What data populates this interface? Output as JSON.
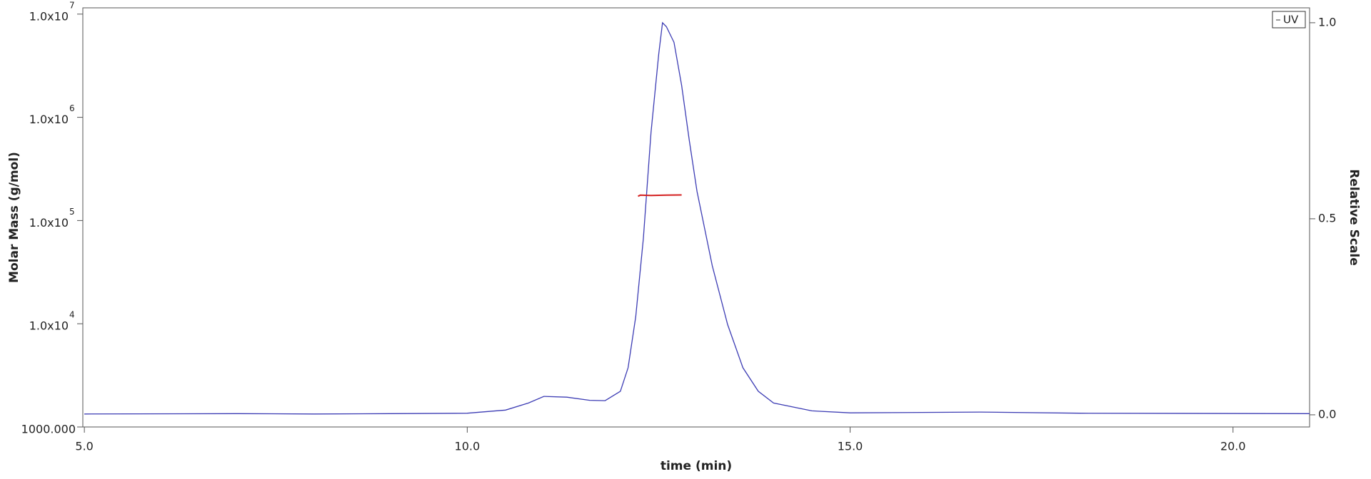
{
  "chart_data": {
    "type": "line",
    "xlabel": "time (min)",
    "ylabel": "Molar Mass (g/mol)",
    "y2label": "Relative Scale",
    "xlim": [
      4.98,
      21.0
    ],
    "xticks": [
      {
        "value": 5,
        "label": "5.0"
      },
      {
        "value": 10,
        "label": "10.0"
      },
      {
        "value": 15,
        "label": "15.0"
      },
      {
        "value": 20,
        "label": "20.0"
      }
    ],
    "ylim": [
      1000,
      11500000
    ],
    "ylog": true,
    "yticks": [
      {
        "value": 1000,
        "label": "1000.000"
      },
      {
        "value": 10000,
        "label": "1.0x10",
        "superscript": "4"
      },
      {
        "value": 100000,
        "label": "1.0x10",
        "superscript": "5"
      },
      {
        "value": 1000000,
        "label": "1.0x10",
        "superscript": "6"
      },
      {
        "value": 10000000,
        "label": "1.0x10",
        "superscript": "7"
      }
    ],
    "y2lim": [
      -0.031,
      1.038
    ],
    "y2ticks": [
      {
        "value": 0,
        "label": "0.0"
      },
      {
        "value": 0.5,
        "label": "0.5"
      },
      {
        "value": 1,
        "label": "1.0"
      }
    ],
    "legend": "top-right",
    "series": [
      {
        "name": "UV",
        "color": "#3c3cb4",
        "axis": "y2",
        "x": [
          5.0,
          7.0,
          8.0,
          9.0,
          10.0,
          10.5,
          10.8,
          11.0,
          11.3,
          11.6,
          11.8,
          12.0,
          12.1,
          12.2,
          12.3,
          12.4,
          12.5,
          12.55,
          12.6,
          12.7,
          12.8,
          12.9,
          13.0,
          13.2,
          13.4,
          13.6,
          13.8,
          14.0,
          14.5,
          15.0,
          16.7,
          18.0,
          21.0
        ],
        "values": [
          0.002,
          0.003,
          0.002,
          0.003,
          0.004,
          0.012,
          0.03,
          0.047,
          0.045,
          0.037,
          0.036,
          0.06,
          0.12,
          0.25,
          0.45,
          0.72,
          0.92,
          1.0,
          0.99,
          0.95,
          0.84,
          0.7,
          0.57,
          0.38,
          0.23,
          0.12,
          0.06,
          0.03,
          0.01,
          0.005,
          0.007,
          0.004,
          0.003
        ]
      },
      {
        "color": "#d42020",
        "axis": "y",
        "x": [
          12.23,
          12.26,
          12.4,
          12.6,
          12.8
        ],
        "values": [
          172000,
          176000,
          175000,
          176000,
          177000
        ]
      }
    ]
  }
}
